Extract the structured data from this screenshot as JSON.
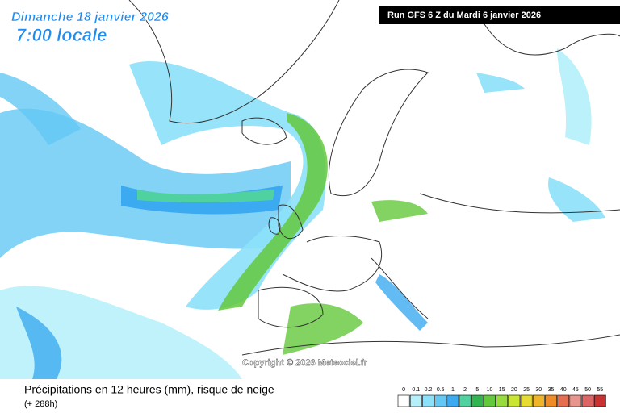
{
  "header": {
    "date": "Dimanche 18 janvier 2026",
    "time": "7:00 locale",
    "run": "Run GFS 6 Z du Mardi 6 janvier 2026"
  },
  "copyright": "Copyright © 2026 Meteociel.fr",
  "footer": {
    "title": "Précipitations en 12 heures (mm), risque de neige",
    "lead": "(+ 288h)"
  },
  "legend": [
    {
      "label": "0",
      "color": "#ffffff"
    },
    {
      "label": "0.1",
      "color": "#b4f0fa"
    },
    {
      "label": "0.2",
      "color": "#8ce1fa"
    },
    {
      "label": "0.5",
      "color": "#64c8f5"
    },
    {
      "label": "1",
      "color": "#3caaf0"
    },
    {
      "label": "2",
      "color": "#50d2a0"
    },
    {
      "label": "5",
      "color": "#32b450"
    },
    {
      "label": "10",
      "color": "#64c83c"
    },
    {
      "label": "15",
      "color": "#96dc3c"
    },
    {
      "label": "20",
      "color": "#c8e632"
    },
    {
      "label": "25",
      "color": "#e6dc32"
    },
    {
      "label": "30",
      "color": "#f0b428"
    },
    {
      "label": "35",
      "color": "#f08c28"
    },
    {
      "label": "40",
      "color": "#e66e50"
    },
    {
      "label": "45",
      "color": "#e6968c"
    },
    {
      "label": "50",
      "color": "#dc6464"
    },
    {
      "label": "55",
      "color": "#c83232"
    }
  ]
}
